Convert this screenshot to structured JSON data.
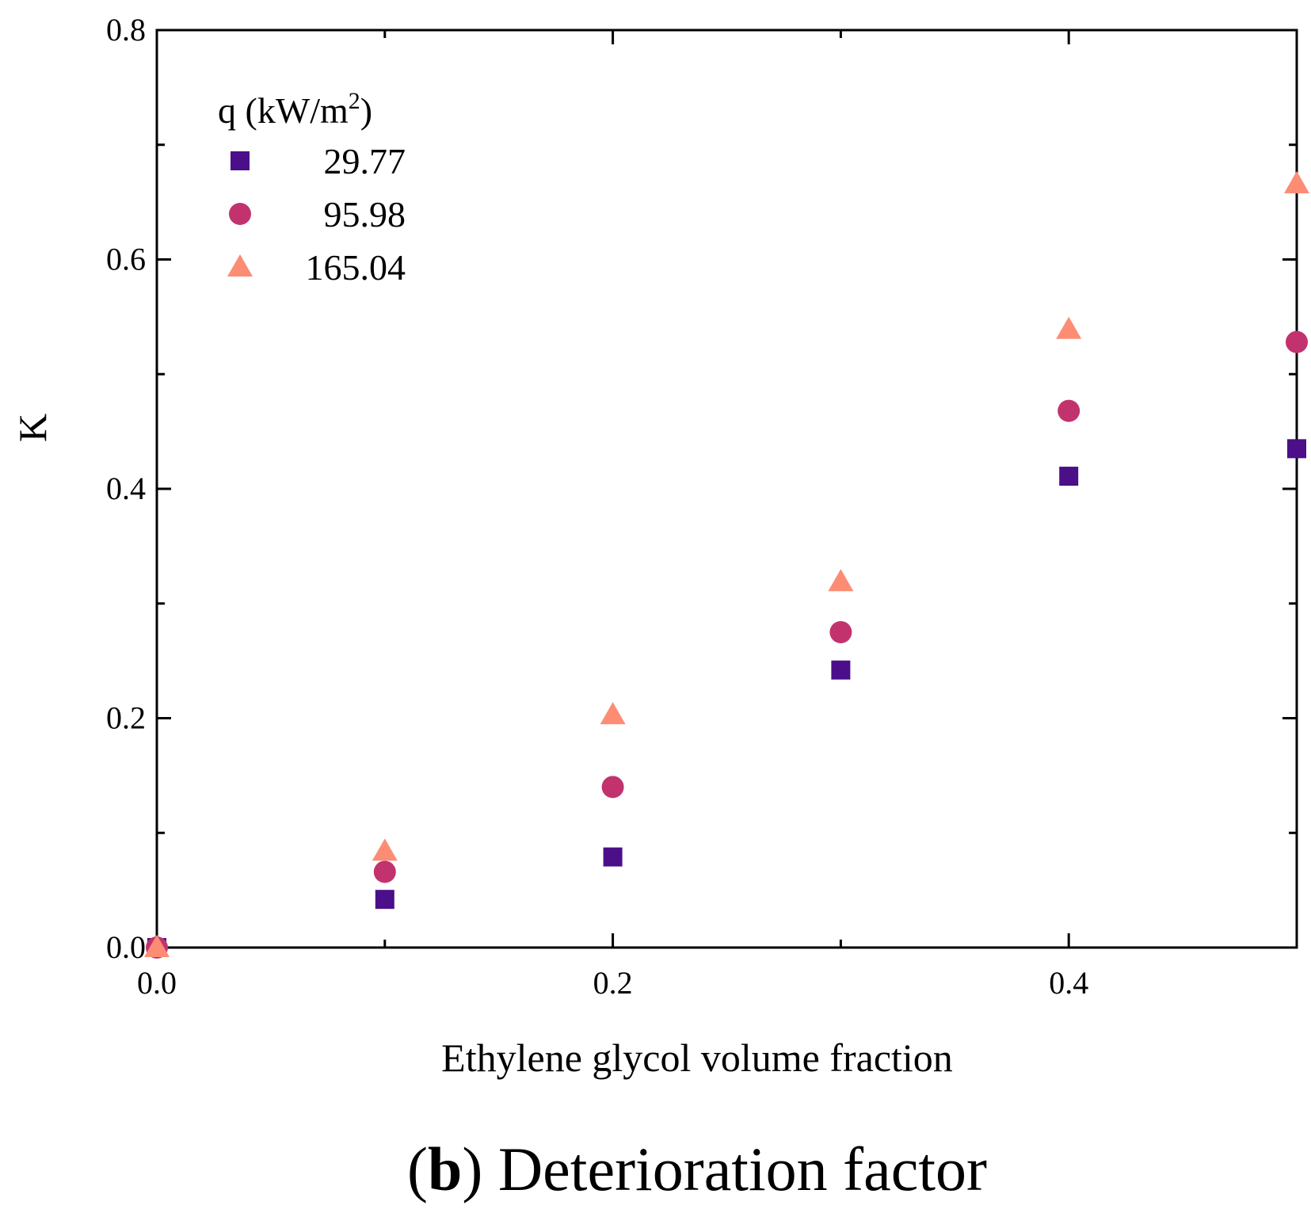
{
  "chart_data": {
    "type": "scatter",
    "title": "",
    "xlabel": "Ethylene glycol volume fraction",
    "ylabel": "K",
    "xlim": [
      0.0,
      0.5
    ],
    "ylim": [
      0.0,
      0.8
    ],
    "x_ticks": [
      "0.0",
      "0.2",
      "0.4"
    ],
    "y_ticks": [
      "0.0",
      "0.2",
      "0.4",
      "0.6",
      "0.8"
    ],
    "grid": false,
    "legend": {
      "title_prefix": "q (kW/m",
      "title_sup": "2",
      "title_suffix": ")",
      "placement": "top-left"
    },
    "series": [
      {
        "name": "29.77",
        "marker": "square",
        "color": "#4b0f8a",
        "x": [
          0.0,
          0.1,
          0.2,
          0.3,
          0.4,
          0.5
        ],
        "y": [
          0.0,
          0.042,
          0.079,
          0.242,
          0.411,
          0.435
        ]
      },
      {
        "name": "95.98",
        "marker": "circle",
        "color": "#c2336e",
        "x": [
          0.0,
          0.1,
          0.2,
          0.3,
          0.4,
          0.5
        ],
        "y": [
          0.0,
          0.066,
          0.14,
          0.275,
          0.468,
          0.528
        ]
      },
      {
        "name": "165.04",
        "marker": "triangle",
        "color": "#fc8d74",
        "x": [
          0.0,
          0.1,
          0.2,
          0.3,
          0.4,
          0.5
        ],
        "y": [
          0.0,
          0.084,
          0.203,
          0.319,
          0.539,
          0.666
        ]
      }
    ]
  },
  "caption": {
    "open_paren": "(",
    "letter": "b",
    "close_paren": ")",
    "text": " Deterioration factor"
  }
}
